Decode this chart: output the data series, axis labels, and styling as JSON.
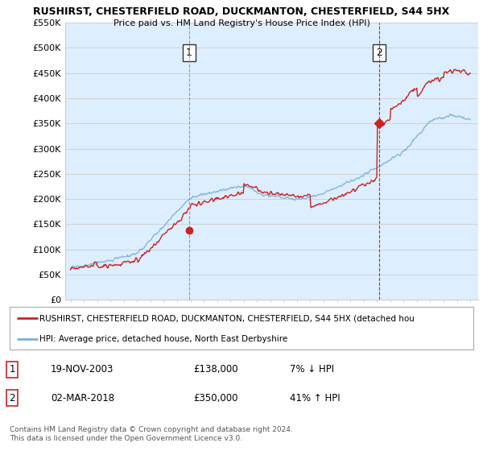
{
  "title_line1": "RUSHIRST, CHESTERFIELD ROAD, DUCKMANTON, CHESTERFIELD, S44 5HX",
  "title_line2": "Price paid vs. HM Land Registry's House Price Index (HPI)",
  "x_start_year": 1995,
  "x_end_year": 2025,
  "y_min": 0,
  "y_max": 550000,
  "y_ticks": [
    0,
    50000,
    100000,
    150000,
    200000,
    250000,
    300000,
    350000,
    400000,
    450000,
    500000,
    550000
  ],
  "y_tick_labels": [
    "£0",
    "£50K",
    "£100K",
    "£150K",
    "£200K",
    "£250K",
    "£300K",
    "£350K",
    "£400K",
    "£450K",
    "£500K",
    "£550K"
  ],
  "purchase1_year": 2003.9,
  "purchase1_value": 138000,
  "purchase2_year": 2018.17,
  "purchase2_value": 350000,
  "hpi_color": "#7ab0d8",
  "price_color": "#cc2222",
  "vline1_color": "#aaaaaa",
  "vline2_color": "#cc2222",
  "grid_color": "#cccccc",
  "bg_color": "#ffffff",
  "plot_bg_color": "#ddeeff",
  "legend_label_red": "RUSHIRST, CHESTERFIELD ROAD, DUCKMANTON, CHESTERFIELD, S44 5HX (detached hou",
  "legend_label_blue": "HPI: Average price, detached house, North East Derbyshire",
  "table_row1_num": "1",
  "table_row1_date": "19-NOV-2003",
  "table_row1_price": "£138,000",
  "table_row1_hpi": "7% ↓ HPI",
  "table_row2_num": "2",
  "table_row2_date": "02-MAR-2018",
  "table_row2_price": "£350,000",
  "table_row2_hpi": "41% ↑ HPI",
  "footer": "Contains HM Land Registry data © Crown copyright and database right 2024.\nThis data is licensed under the Open Government Licence v3.0."
}
